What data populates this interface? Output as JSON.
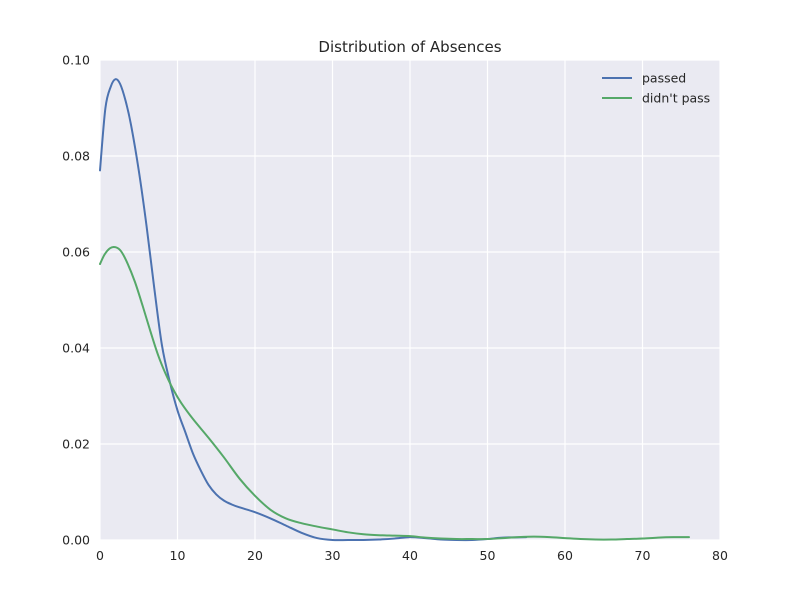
{
  "chart_data": {
    "type": "line",
    "title": "Distribution of Absences",
    "xlabel": "",
    "ylabel": "",
    "xlim": [
      0,
      80
    ],
    "ylim": [
      0,
      0.1
    ],
    "xticks": [
      "0",
      "10",
      "20",
      "30",
      "40",
      "50",
      "60",
      "70",
      "80"
    ],
    "yticks": [
      "0.00",
      "0.02",
      "0.04",
      "0.06",
      "0.08",
      "0.10"
    ],
    "grid": true,
    "legend_position": "top-right",
    "series": [
      {
        "name": "passed",
        "color": "#4c72b0",
        "x": [
          0,
          0.7,
          1.4,
          2,
          2.6,
          3.3,
          4,
          5,
          6,
          7,
          8,
          9,
          10,
          11,
          12,
          13,
          14,
          15,
          16,
          17,
          18,
          20,
          22,
          24,
          26,
          28,
          30,
          32,
          34,
          36,
          38,
          40,
          42,
          44,
          46,
          48,
          50,
          52,
          55
        ],
        "values": [
          0.077,
          0.09,
          0.0945,
          0.096,
          0.095,
          0.0915,
          0.0865,
          0.077,
          0.0655,
          0.0525,
          0.0405,
          0.033,
          0.027,
          0.0225,
          0.018,
          0.0145,
          0.0115,
          0.0095,
          0.0082,
          0.0074,
          0.0068,
          0.0058,
          0.0045,
          0.003,
          0.0015,
          0.0004,
          0.0,
          0.0,
          0.0,
          0.0001,
          0.0003,
          0.0006,
          0.0004,
          0.0001,
          0.0,
          0.0,
          0.0002,
          0.0005,
          0.0006
        ]
      },
      {
        "name": "didn't pass",
        "color": "#55a868",
        "x": [
          0,
          0.6,
          1.3,
          2,
          2.7,
          3.5,
          4.5,
          5.5,
          6.5,
          7.5,
          8.5,
          9.5,
          10.5,
          12,
          14,
          16,
          18,
          20,
          22,
          24,
          26,
          28,
          30,
          32,
          34,
          36,
          38,
          40,
          42,
          44,
          46,
          48,
          50,
          52,
          54,
          56,
          58,
          60,
          62,
          64,
          66,
          68,
          70,
          72,
          74,
          76
        ],
        "values": [
          0.0575,
          0.0595,
          0.0608,
          0.061,
          0.0602,
          0.0578,
          0.0538,
          0.0488,
          0.0435,
          0.0385,
          0.0345,
          0.0312,
          0.0285,
          0.0252,
          0.0213,
          0.0172,
          0.0128,
          0.0092,
          0.0063,
          0.0045,
          0.0035,
          0.0028,
          0.0022,
          0.0016,
          0.0012,
          0.001,
          0.0009,
          0.0008,
          0.0005,
          0.0003,
          0.0002,
          0.0002,
          0.0002,
          0.0004,
          0.0006,
          0.0007,
          0.0006,
          0.0004,
          0.0002,
          0.0001,
          0.0001,
          0.0002,
          0.0003,
          0.0005,
          0.0006,
          0.0006
        ]
      }
    ]
  },
  "colors": {
    "plot_background": "#eaeaf2",
    "grid": "#ffffff",
    "text": "#262626"
  }
}
